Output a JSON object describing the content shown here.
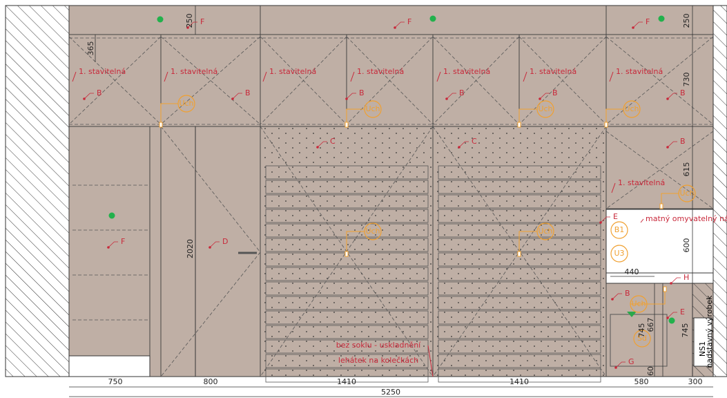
{
  "letters": [
    "F",
    "F",
    "F",
    "F",
    "B",
    "B",
    "B",
    "B",
    "B",
    "B",
    "B",
    "B",
    "C",
    "C",
    "D",
    "E",
    "E",
    "G",
    "H"
  ],
  "shelf_labels": [
    "1. stavitelná",
    "1. stavitelná",
    "1. stavitelná",
    "1. stavitelná",
    "1. stavitelná",
    "1. stavitelná",
    "1. stavitelná",
    "1. stavitelná"
  ],
  "handle_labels": [
    "Uch",
    "Uch",
    "Uch",
    "Uch",
    "Uch",
    "Uch",
    "Uch",
    "Uch"
  ],
  "circle_labels": [
    "B1",
    "U3",
    "Sd"
  ],
  "dimensions": [
    250,
    365,
    730,
    615,
    250,
    2020,
    600,
    440,
    745,
    667,
    745,
    60,
    750,
    800,
    1410,
    1410,
    580,
    300,
    5250
  ],
  "note": "matný omyvatelný nátěr",
  "storage_note": [
    "bez soklu - uskladnění",
    "lehátek na kolečkách"
  ],
  "ns_label": "NS1",
  "ns_sub": "nadstavný výrobek"
}
